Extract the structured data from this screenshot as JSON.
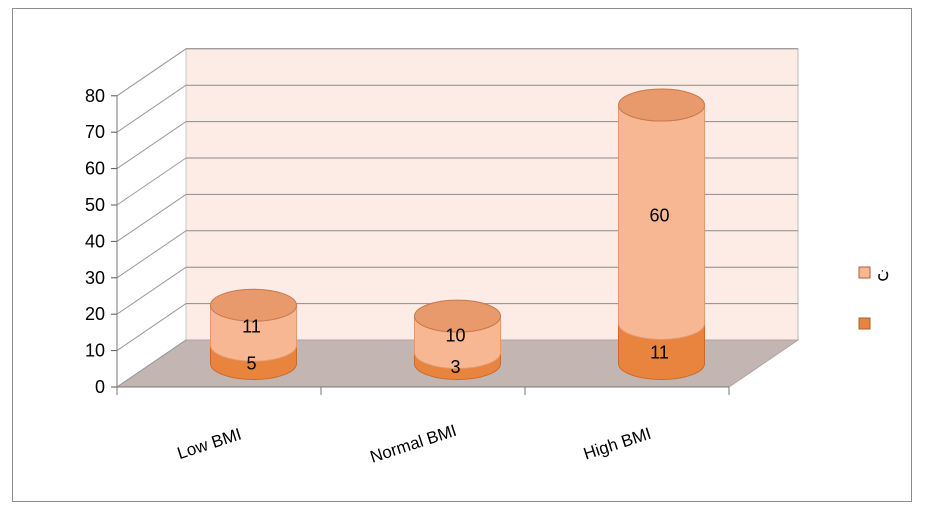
{
  "chart_data": {
    "type": "bar",
    "style": "3d-stacked-cylinder",
    "title": "",
    "xlabel": "",
    "ylabel": "",
    "ylim": [
      0,
      80
    ],
    "yticks": [
      "0",
      "10",
      "20",
      "30",
      "40",
      "50",
      "60",
      "70",
      "80"
    ],
    "grid": true,
    "legend_position": "right",
    "categories": [
      "Low BMI",
      "Normal BMI",
      "High BMI"
    ],
    "series": [
      {
        "values": [
          5,
          3,
          11
        ],
        "color": "#e8843e"
      },
      {
        "name": "ن",
        "values": [
          11,
          10,
          60
        ],
        "color": "#f7b792"
      }
    ]
  },
  "colors": {
    "back_wall": "#fdece6",
    "floor": "#c2b5b2",
    "gridline": "#8a8a8a"
  }
}
